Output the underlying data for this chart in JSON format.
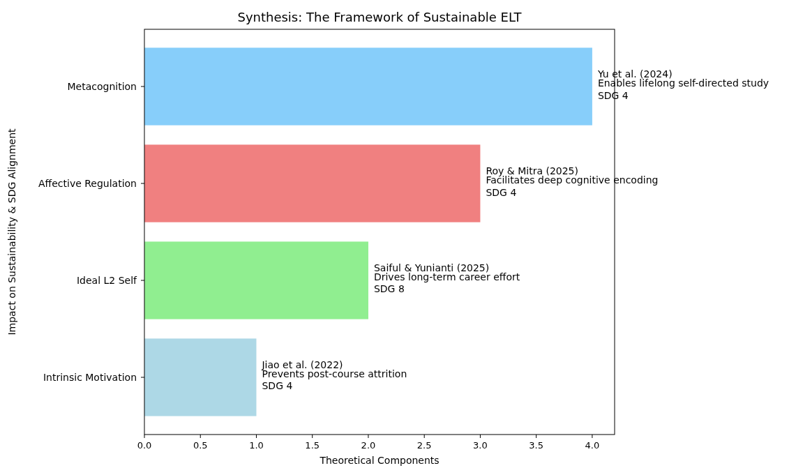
{
  "chart_data": {
    "type": "bar",
    "orientation": "horizontal",
    "title": "Synthesis: The Framework of Sustainable ELT",
    "xlabel": "Theoretical Components",
    "ylabel": "Impact on Sustainability & SDG Alignment",
    "categories": [
      "Metacognition",
      "Affective Regulation",
      "Ideal L2 Self",
      "Intrinsic Motivation"
    ],
    "values": [
      4,
      3,
      2,
      1
    ],
    "colors": [
      "#87cefa",
      "#f08080",
      "#90ee90",
      "#add8e6"
    ],
    "xlim": [
      0,
      4.2
    ],
    "xticks": [
      {
        "value": 0,
        "label": "0.0"
      },
      {
        "value": 0.5,
        "label": "0.5"
      },
      {
        "value": 1,
        "label": "1.0"
      },
      {
        "value": 1.5,
        "label": "1.5"
      },
      {
        "value": 2,
        "label": "2.0"
      },
      {
        "value": 2.5,
        "label": "2.5"
      },
      {
        "value": 3,
        "label": "3.0"
      },
      {
        "value": 3.5,
        "label": "3.5"
      },
      {
        "value": 4,
        "label": "4.0"
      }
    ],
    "annotations": [
      {
        "text": "Yu et al. (2024)\nEnables lifelong self-directed study\nSDG 4",
        "x": 4,
        "y": "Metacognition"
      },
      {
        "text": "Roy & Mitra (2025)\nFacilitates deep cognitive encoding\nSDG 4",
        "x": 3,
        "y": "Affective Regulation"
      },
      {
        "text": "Saiful & Yunianti (2025)\nDrives long-term career effort\nSDG 8",
        "x": 2,
        "y": "Ideal L2 Self"
      },
      {
        "text": "Jiao et al. (2022)\nPrevents post-course attrition\nSDG 4",
        "x": 1,
        "y": "Intrinsic Motivation"
      }
    ]
  }
}
